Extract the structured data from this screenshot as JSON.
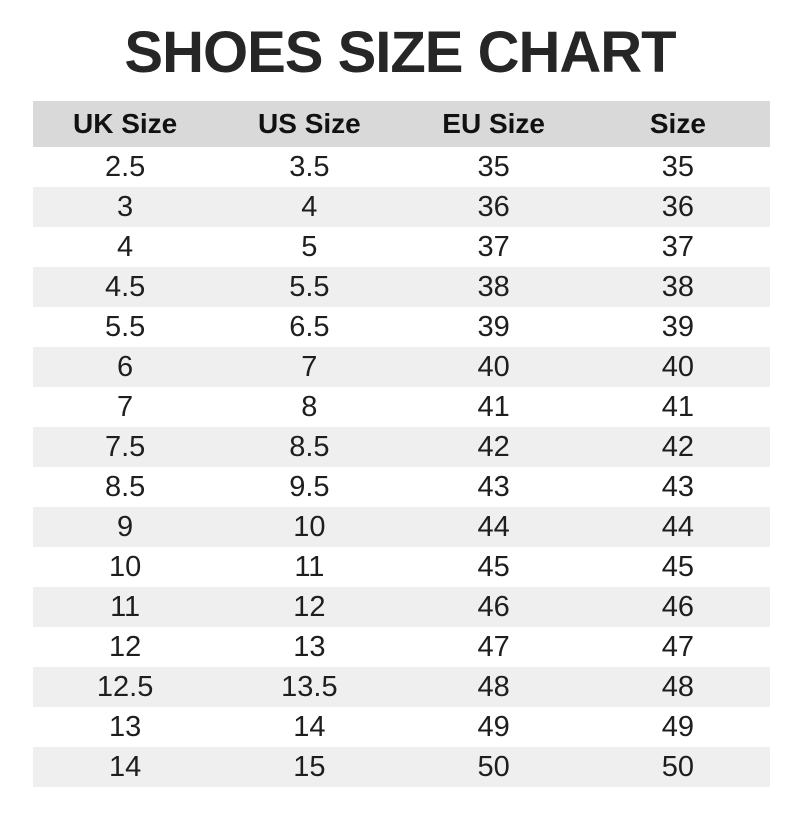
{
  "page": {
    "title": "SHOES SIZE CHART"
  },
  "colors": {
    "header_bg": "#d9d9d9",
    "alt_row_bg": "#efefef",
    "title_text": "#262626",
    "cell_text": "#1e1e1e"
  },
  "chart_data": {
    "type": "table",
    "title": "SHOES SIZE CHART",
    "columns": [
      "UK Size",
      "US Size",
      "EU Size",
      "Size"
    ],
    "rows": [
      [
        "2.5",
        "3.5",
        "35",
        "35"
      ],
      [
        "3",
        "4",
        "36",
        "36"
      ],
      [
        "4",
        "5",
        "37",
        "37"
      ],
      [
        "4.5",
        "5.5",
        "38",
        "38"
      ],
      [
        "5.5",
        "6.5",
        "39",
        "39"
      ],
      [
        "6",
        "7",
        "40",
        "40"
      ],
      [
        "7",
        "8",
        "41",
        "41"
      ],
      [
        "7.5",
        "8.5",
        "42",
        "42"
      ],
      [
        "8.5",
        "9.5",
        "43",
        "43"
      ],
      [
        "9",
        "10",
        "44",
        "44"
      ],
      [
        "10",
        "11",
        "45",
        "45"
      ],
      [
        "11",
        "12",
        "46",
        "46"
      ],
      [
        "12",
        "13",
        "47",
        "47"
      ],
      [
        "12.5",
        "13.5",
        "48",
        "48"
      ],
      [
        "13",
        "14",
        "49",
        "49"
      ],
      [
        "14",
        "15",
        "50",
        "50"
      ]
    ],
    "layout": {
      "header_row_shaded": true,
      "zebra_striping": true,
      "alignment": "center"
    }
  }
}
